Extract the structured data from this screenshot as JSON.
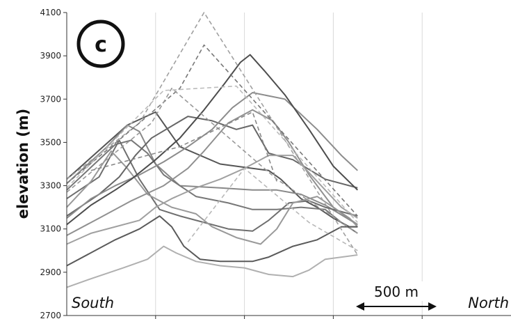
{
  "chart_data": {
    "type": "line",
    "title": "",
    "panel_label": "c",
    "ylabel": "elevation (m)",
    "xlabel": "",
    "ylim": [
      2700,
      4100
    ],
    "yticks": [
      2700,
      2900,
      3100,
      3300,
      3500,
      3700,
      3900,
      4100
    ],
    "xlim": [
      0,
      5500
    ],
    "x_grid_count": 5,
    "grid": true,
    "left_annotation": "South",
    "right_annotation": "North",
    "scale_bar_label": "500 m",
    "scale_bar_length_m": 500,
    "series": [
      {
        "style": "solid",
        "color": "#555555",
        "points": [
          [
            0,
            3330
          ],
          [
            750,
            3580
          ],
          [
            1100,
            3640
          ],
          [
            1400,
            3480
          ],
          [
            1900,
            3400
          ],
          [
            2300,
            3380
          ],
          [
            2500,
            3370
          ],
          [
            2650,
            3330
          ],
          [
            2900,
            3240
          ],
          [
            3100,
            3200
          ],
          [
            3300,
            3150
          ],
          [
            3500,
            3110
          ],
          [
            3600,
            3110
          ]
        ]
      },
      {
        "style": "solid",
        "color": "#888888",
        "points": [
          [
            0,
            3310
          ],
          [
            500,
            3480
          ],
          [
            750,
            3580
          ],
          [
            900,
            3550
          ],
          [
            1100,
            3400
          ],
          [
            1400,
            3300
          ],
          [
            1900,
            3290
          ],
          [
            2300,
            3280
          ],
          [
            2600,
            3280
          ],
          [
            2900,
            3260
          ],
          [
            3200,
            3210
          ],
          [
            3600,
            3120
          ]
        ]
      },
      {
        "style": "solid",
        "color": "#777777",
        "points": [
          [
            0,
            3280
          ],
          [
            600,
            3490
          ],
          [
            800,
            3510
          ],
          [
            1000,
            3450
          ],
          [
            1200,
            3350
          ],
          [
            1600,
            3250
          ],
          [
            2000,
            3220
          ],
          [
            2300,
            3190
          ],
          [
            2600,
            3190
          ],
          [
            2900,
            3200
          ],
          [
            3200,
            3190
          ],
          [
            3400,
            3130
          ],
          [
            3600,
            3080
          ]
        ]
      },
      {
        "style": "solid",
        "color": "#6e6e6e",
        "points": [
          [
            0,
            3240
          ],
          [
            400,
            3340
          ],
          [
            650,
            3510
          ],
          [
            900,
            3330
          ],
          [
            1150,
            3190
          ],
          [
            1400,
            3160
          ],
          [
            1700,
            3130
          ],
          [
            2000,
            3100
          ],
          [
            2300,
            3090
          ],
          [
            2500,
            3140
          ],
          [
            2750,
            3220
          ],
          [
            3000,
            3230
          ],
          [
            3200,
            3200
          ],
          [
            3600,
            3160
          ]
        ]
      },
      {
        "style": "solid",
        "color": "#999999",
        "points": [
          [
            0,
            3200
          ],
          [
            300,
            3320
          ],
          [
            550,
            3460
          ],
          [
            750,
            3380
          ],
          [
            1000,
            3260
          ],
          [
            1300,
            3200
          ],
          [
            1600,
            3170
          ],
          [
            1800,
            3110
          ],
          [
            2100,
            3060
          ],
          [
            2400,
            3030
          ],
          [
            2600,
            3100
          ],
          [
            2800,
            3220
          ],
          [
            3100,
            3250
          ],
          [
            3500,
            3150
          ],
          [
            3600,
            3110
          ]
        ]
      },
      {
        "style": "solid",
        "color": "#666666",
        "points": [
          [
            0,
            3160
          ],
          [
            400,
            3260
          ],
          [
            650,
            3340
          ],
          [
            850,
            3440
          ],
          [
            1050,
            3520
          ],
          [
            1500,
            3620
          ],
          [
            1800,
            3600
          ],
          [
            2100,
            3560
          ],
          [
            2300,
            3580
          ],
          [
            2500,
            3450
          ],
          [
            2800,
            3420
          ],
          [
            3200,
            3330
          ],
          [
            3600,
            3290
          ]
        ]
      },
      {
        "style": "solid",
        "color": "#8c8c8c",
        "points": [
          [
            0,
            3150
          ],
          [
            300,
            3240
          ],
          [
            600,
            3300
          ],
          [
            900,
            3350
          ],
          [
            1200,
            3410
          ],
          [
            1500,
            3480
          ],
          [
            1800,
            3560
          ],
          [
            2050,
            3660
          ],
          [
            2300,
            3730
          ],
          [
            2700,
            3700
          ],
          [
            3100,
            3560
          ],
          [
            3400,
            3440
          ],
          [
            3600,
            3370
          ]
        ]
      },
      {
        "style": "solid",
        "color": "#4d4d4d",
        "points": [
          [
            0,
            3120
          ],
          [
            300,
            3210
          ],
          [
            600,
            3280
          ],
          [
            800,
            3330
          ],
          [
            1100,
            3420
          ],
          [
            1400,
            3520
          ],
          [
            1700,
            3650
          ],
          [
            1950,
            3770
          ],
          [
            2150,
            3870
          ],
          [
            2270,
            3905
          ],
          [
            2450,
            3830
          ],
          [
            2700,
            3720
          ],
          [
            3000,
            3560
          ],
          [
            3300,
            3390
          ],
          [
            3600,
            3280
          ]
        ]
      },
      {
        "style": "solid",
        "color": "#909090",
        "points": [
          [
            0,
            3070
          ],
          [
            400,
            3150
          ],
          [
            800,
            3230
          ],
          [
            1200,
            3300
          ],
          [
            1500,
            3380
          ],
          [
            1700,
            3460
          ],
          [
            2000,
            3590
          ],
          [
            2300,
            3650
          ],
          [
            2550,
            3600
          ],
          [
            2750,
            3500
          ],
          [
            3000,
            3350
          ],
          [
            3300,
            3200
          ],
          [
            3600,
            3120
          ]
        ]
      },
      {
        "style": "solid",
        "color": "#a0a0a0",
        "points": [
          [
            0,
            3030
          ],
          [
            300,
            3080
          ],
          [
            600,
            3110
          ],
          [
            900,
            3140
          ],
          [
            1100,
            3200
          ],
          [
            1300,
            3240
          ],
          [
            1600,
            3290
          ],
          [
            1900,
            3330
          ],
          [
            2200,
            3380
          ],
          [
            2500,
            3440
          ],
          [
            2800,
            3440
          ],
          [
            3100,
            3320
          ],
          [
            3400,
            3200
          ],
          [
            3600,
            3150
          ]
        ]
      },
      {
        "style": "solid",
        "color": "#5a5a5a",
        "points": [
          [
            0,
            2930
          ],
          [
            300,
            2990
          ],
          [
            600,
            3050
          ],
          [
            900,
            3100
          ],
          [
            1150,
            3160
          ],
          [
            1300,
            3110
          ],
          [
            1450,
            3020
          ],
          [
            1650,
            2960
          ],
          [
            1900,
            2950
          ],
          [
            2300,
            2950
          ],
          [
            2500,
            2970
          ],
          [
            2800,
            3020
          ],
          [
            3100,
            3050
          ],
          [
            3400,
            3110
          ],
          [
            3600,
            3110
          ]
        ]
      },
      {
        "style": "solid",
        "color": "#b0b0b0",
        "points": [
          [
            0,
            2830
          ],
          [
            300,
            2870
          ],
          [
            700,
            2920
          ],
          [
            1000,
            2960
          ],
          [
            1200,
            3020
          ],
          [
            1350,
            2990
          ],
          [
            1600,
            2950
          ],
          [
            1900,
            2930
          ],
          [
            2200,
            2920
          ],
          [
            2500,
            2890
          ],
          [
            2800,
            2880
          ],
          [
            3000,
            2910
          ],
          [
            3200,
            2960
          ],
          [
            3600,
            2980
          ]
        ]
      },
      {
        "style": "dashed",
        "color": "#a0a0a0",
        "points": [
          [
            0,
            3330
          ],
          [
            900,
            3590
          ],
          [
            1700,
            4100
          ],
          [
            3600,
            2980
          ]
        ]
      },
      {
        "style": "dashed",
        "color": "#777777",
        "points": [
          [
            0,
            3310
          ],
          [
            900,
            3590
          ],
          [
            1400,
            3750
          ],
          [
            1700,
            3950
          ],
          [
            3600,
            3160
          ]
        ]
      },
      {
        "style": "dashed",
        "color": "#bbbbbb",
        "points": [
          [
            0,
            3290
          ],
          [
            1200,
            3740
          ],
          [
            2100,
            3760
          ],
          [
            3600,
            3130
          ]
        ]
      },
      {
        "style": "dashed",
        "color": "#999999",
        "points": [
          [
            0,
            3270
          ],
          [
            1050,
            3590
          ],
          [
            1300,
            3750
          ],
          [
            2600,
            3330
          ],
          [
            3600,
            3080
          ]
        ]
      },
      {
        "style": "dashed",
        "color": "#888888",
        "points": [
          [
            300,
            3370
          ],
          [
            1400,
            3480
          ],
          [
            2300,
            3640
          ],
          [
            2600,
            3320
          ]
        ]
      },
      {
        "style": "dashed",
        "color": "#b8b8b8",
        "points": [
          [
            1500,
            3040
          ],
          [
            2200,
            3380
          ],
          [
            3000,
            3130
          ],
          [
            3600,
            3000
          ]
        ]
      }
    ]
  }
}
